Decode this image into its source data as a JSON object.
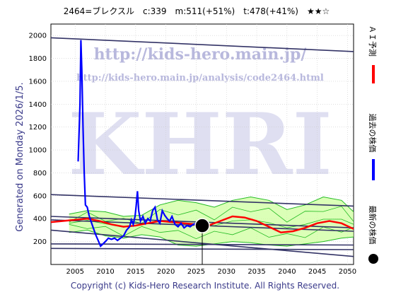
{
  "header": {
    "title": "2464=ブレクスル　c:339　m:511(+51%)　t:478(+41%)　★★☆"
  },
  "side_label": "Generated on Monday 2026/1/5.",
  "footer": "Copyright (c) Kids-Hero Research Institute. All Rights Reserved.",
  "watermark": {
    "url1": "http://kids-hero.main.jp/",
    "url2": "http://kids-hero.main.jp/analysis/code2464.html",
    "big": "KHRI"
  },
  "legend": {
    "ai": "ＡＩ予測",
    "past": "過去の株価",
    "latest": "最新の株価"
  },
  "colors": {
    "ai": "#ff0000",
    "past": "#0000ff",
    "latest": "#000000",
    "band_green": "#22bb22",
    "band_fill": "#ccff99",
    "band_yellow": "#ffff99",
    "channel": "#333366",
    "grid": "#cccccc"
  },
  "chart_data": {
    "type": "line",
    "xlim": [
      2001,
      2051
    ],
    "ylim": [
      0,
      2100
    ],
    "x_ticks": [
      2005,
      2010,
      2015,
      2020,
      2025,
      2030,
      2035,
      2040,
      2045,
      2050
    ],
    "y_ticks": [
      200,
      400,
      600,
      800,
      1000,
      1200,
      1400,
      1600,
      1800,
      2000
    ],
    "latest_point": {
      "x": 2026.0,
      "y": 339
    },
    "past_price": {
      "x": [
        2005.5,
        2005.8,
        2005.95,
        2006.1,
        2006.3,
        2006.5,
        2006.7,
        2007.0,
        2007.3,
        2007.6,
        2008.0,
        2008.4,
        2008.8,
        2009.2,
        2009.6,
        2010.0,
        2010.5,
        2011.0,
        2011.5,
        2012.0,
        2012.5,
        2013.0,
        2013.5,
        2014.0,
        2014.3,
        2014.6,
        2014.9,
        2015.1,
        2015.3,
        2015.5,
        2015.8,
        2016.2,
        2016.6,
        2017.0,
        2017.4,
        2017.8,
        2018.2,
        2018.6,
        2019.0,
        2019.4,
        2019.8,
        2020.2,
        2020.6,
        2021.0,
        2021.5,
        2022.0,
        2022.5,
        2023.0,
        2023.5,
        2024.0,
        2024.5,
        2025.0,
        2025.5,
        2026.0
      ],
      "y": [
        900,
        1400,
        1960,
        1700,
        1200,
        800,
        520,
        500,
        430,
        380,
        320,
        260,
        210,
        160,
        180,
        200,
        230,
        220,
        230,
        210,
        230,
        250,
        300,
        330,
        390,
        350,
        420,
        520,
        640,
        470,
        380,
        420,
        360,
        400,
        380,
        470,
        500,
        390,
        360,
        470,
        430,
        400,
        380,
        420,
        350,
        330,
        360,
        320,
        340,
        330,
        350,
        360,
        345,
        339
      ]
    },
    "ai_forecast": {
      "x": [
        2001,
        2003,
        2005,
        2007,
        2009,
        2011,
        2013,
        2015,
        2017,
        2019,
        2021,
        2023,
        2025,
        2027,
        2029,
        2031,
        2033,
        2035,
        2037,
        2039,
        2041,
        2043,
        2045,
        2047,
        2049,
        2051
      ],
      "y": [
        370,
        380,
        390,
        400,
        380,
        350,
        330,
        340,
        360,
        380,
        370,
        360,
        350,
        340,
        380,
        420,
        410,
        380,
        330,
        280,
        290,
        320,
        360,
        380,
        360,
        310
      ]
    },
    "band_upper": {
      "x": [
        2004,
        2007,
        2010,
        2013,
        2016,
        2019,
        2022,
        2025,
        2028,
        2031,
        2034,
        2037,
        2040,
        2043,
        2046,
        2049,
        2051
      ],
      "y": [
        440,
        470,
        460,
        420,
        430,
        520,
        560,
        540,
        500,
        560,
        590,
        560,
        480,
        520,
        590,
        560,
        460
      ]
    },
    "band_lower": {
      "x": [
        2004,
        2007,
        2010,
        2013,
        2016,
        2019,
        2022,
        2025,
        2028,
        2031,
        2034,
        2037,
        2040,
        2043,
        2046,
        2049,
        2051
      ],
      "y": [
        280,
        300,
        250,
        230,
        260,
        240,
        170,
        160,
        180,
        200,
        190,
        170,
        160,
        180,
        200,
        230,
        240
      ]
    },
    "channel_lines": [
      {
        "x": [
          2001,
          2051
        ],
        "y": [
          1980,
          1860
        ]
      },
      {
        "x": [
          2001,
          2051
        ],
        "y": [
          610,
          510
        ]
      },
      {
        "x": [
          2001,
          2051
        ],
        "y": [
          420,
          320
        ]
      },
      {
        "x": [
          2001,
          2051
        ],
        "y": [
          390,
          290
        ]
      },
      {
        "x": [
          2001,
          2051
        ],
        "y": [
          300,
          70
        ]
      },
      {
        "x": [
          2001,
          2051
        ],
        "y": [
          180,
          170
        ]
      },
      {
        "x": [
          2001,
          2051
        ],
        "y": [
          140,
          130
        ]
      }
    ]
  }
}
